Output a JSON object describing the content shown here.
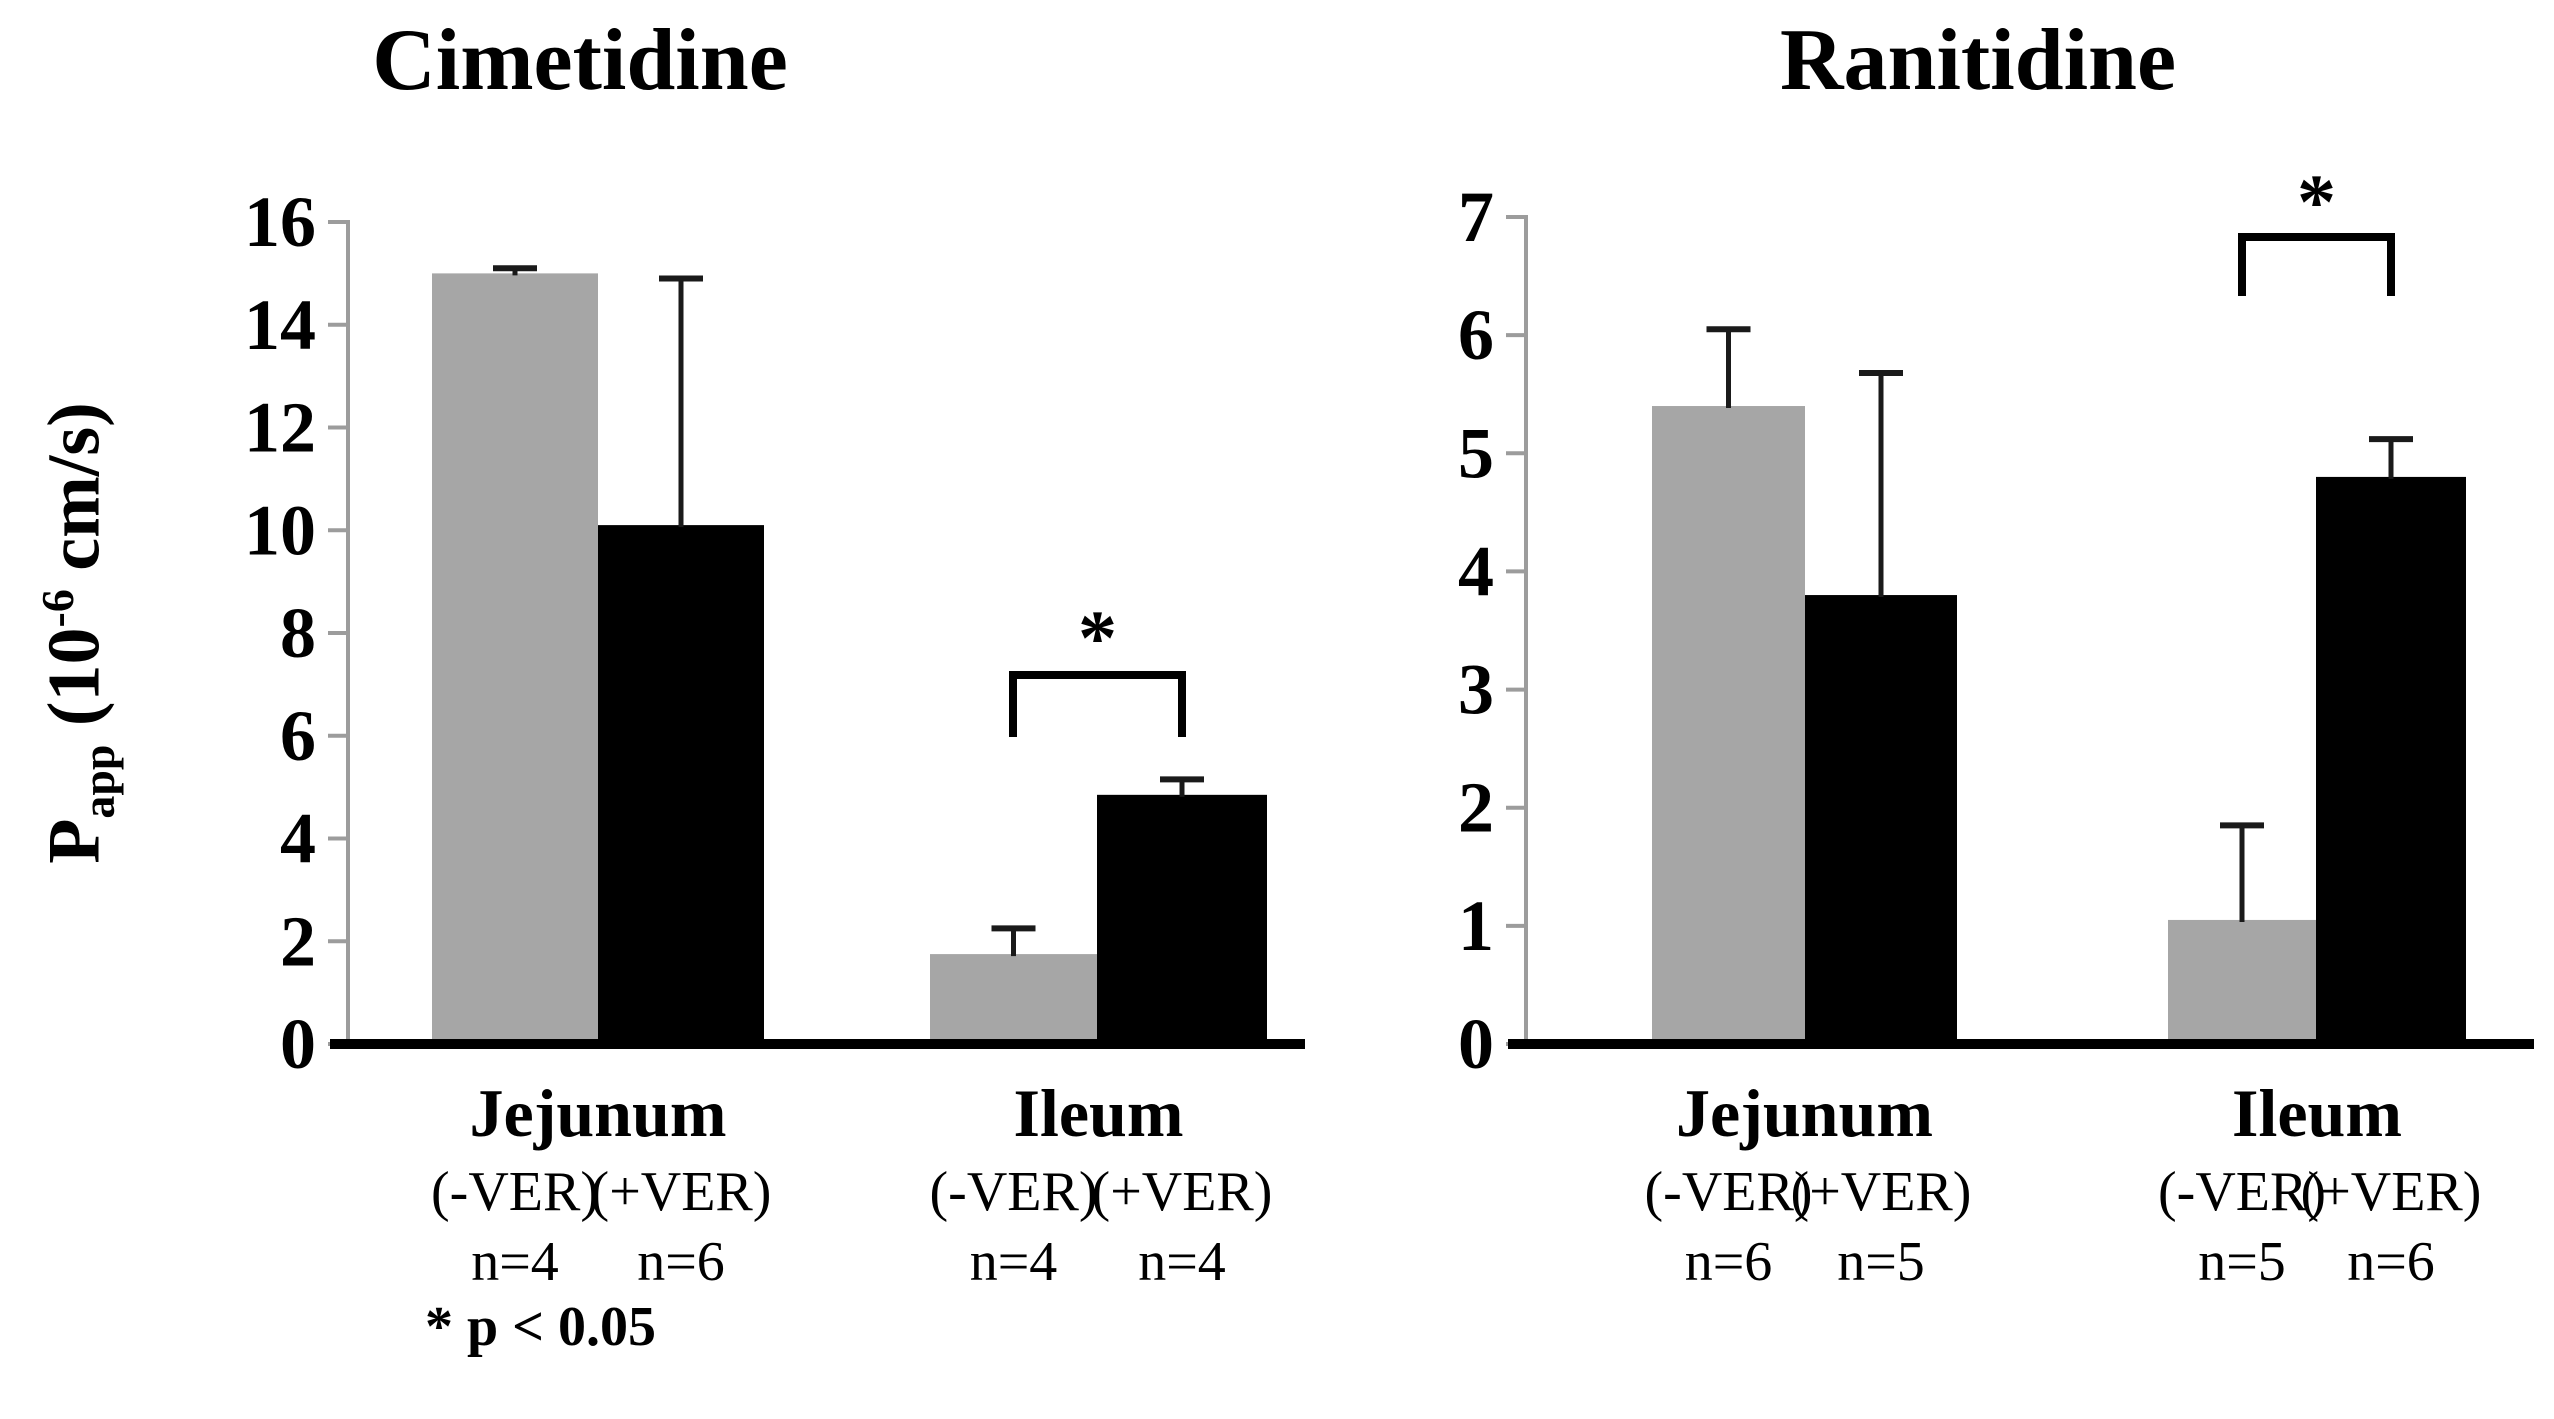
{
  "figure": {
    "note": "* p < 0.05"
  },
  "ylabel_parts": {
    "p": "P",
    "sub": "app",
    "mid": " (10",
    "sup": "-6",
    "end": " cm/s)"
  },
  "colors": {
    "no_ver_bar": "#a6a6a6",
    "plus_ver_bar": "#000000",
    "axis_line": "#9c9c9c",
    "baseline": "#000000",
    "error_bar": "#1a1a1a",
    "text": "#000000",
    "background": "#ffffff"
  },
  "chart_data": [
    {
      "type": "bar",
      "title": "Cimetidine",
      "ylabel": "Papp (10-6 cm/s)",
      "ylim": [
        0,
        16
      ],
      "ytick_step": 2,
      "yticks": [
        0,
        2,
        4,
        6,
        8,
        10,
        12,
        14,
        16
      ],
      "grid": false,
      "legend_position": "none",
      "categories": [
        "Jejunum",
        "Ileum"
      ],
      "series_names": [
        "(-VER)",
        "(+VER)"
      ],
      "groups": [
        {
          "label": "Jejunum",
          "significant": false,
          "sig_label": "",
          "bars": [
            {
              "series": "(-VER)",
              "value": 15.0,
              "error": 0.1,
              "n": "n=4"
            },
            {
              "series": "(+VER)",
              "value": 10.1,
              "error": 4.8,
              "n": "n=6"
            }
          ]
        },
        {
          "label": "Ileum",
          "significant": true,
          "sig_label": "*",
          "bars": [
            {
              "series": "(-VER)",
              "value": 1.75,
              "error": 0.5,
              "n": "n=4"
            },
            {
              "series": "(+VER)",
              "value": 4.85,
              "error": 0.3,
              "n": "n=4"
            }
          ]
        }
      ]
    },
    {
      "type": "bar",
      "title": "Ranitidine",
      "ylabel": "Papp (10-6 cm/s)",
      "ylim": [
        0,
        7
      ],
      "ytick_step": 1,
      "yticks": [
        0,
        1,
        2,
        3,
        4,
        5,
        6,
        7
      ],
      "grid": false,
      "legend_position": "none",
      "categories": [
        "Jejunum",
        "Ileum"
      ],
      "series_names": [
        "(-VER)",
        "(+VER)"
      ],
      "groups": [
        {
          "label": "Jejunum",
          "significant": false,
          "sig_label": "",
          "bars": [
            {
              "series": "(-VER)",
              "value": 5.4,
              "error": 0.65,
              "n": "n=6"
            },
            {
              "series": "(+VER)",
              "value": 3.8,
              "error": 1.88,
              "n": "n=5"
            }
          ]
        },
        {
          "label": "Ileum",
          "significant": true,
          "sig_label": "*",
          "bars": [
            {
              "series": "(-VER)",
              "value": 1.05,
              "error": 0.8,
              "n": "n=5"
            },
            {
              "series": "(+VER)",
              "value": 4.8,
              "error": 0.32,
              "n": "n=6"
            }
          ]
        }
      ]
    }
  ]
}
